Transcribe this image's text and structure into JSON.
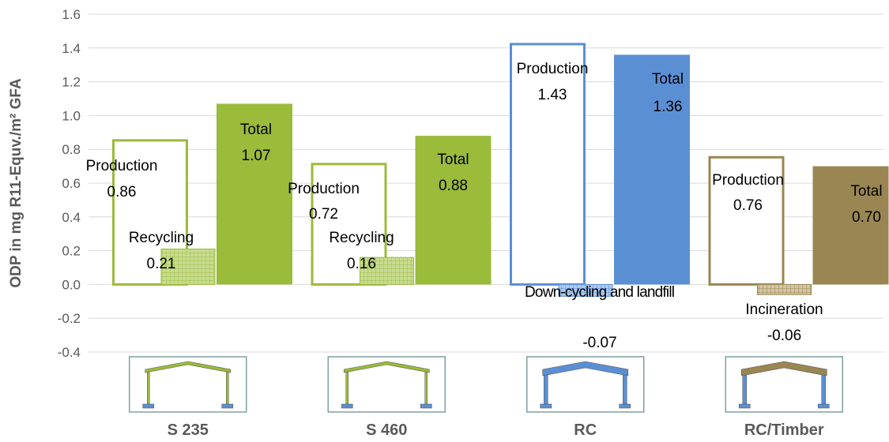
{
  "chart_data": {
    "type": "bar",
    "title": "",
    "xlabel": "",
    "ylabel": "ODP in mg R11-Equv./m² GFA",
    "ylim": [
      -0.4,
      1.6
    ],
    "ytick_step": 0.2,
    "grid": true,
    "legend": "none",
    "categories": [
      {
        "name": "S 235",
        "structure_color": "#9BBB3B",
        "roof_color": "#9BBB3B",
        "bars": [
          {
            "label": "Production",
            "value": 0.86,
            "value_text": "0.86",
            "style": "outline",
            "color": "#9BBB3B"
          },
          {
            "label": "Recycling",
            "value": 0.21,
            "value_text": "0.21",
            "style": "hatched",
            "color": "#9BBB3B"
          },
          {
            "label": "Total",
            "value": 1.07,
            "value_text": "1.07",
            "style": "solid",
            "color": "#9BBB3B"
          }
        ]
      },
      {
        "name": "S 460",
        "structure_color": "#9BBB3B",
        "roof_color": "#9BBB3B",
        "bars": [
          {
            "label": "Production",
            "value": 0.72,
            "value_text": "0.72",
            "style": "outline",
            "color": "#9BBB3B"
          },
          {
            "label": "Recycling",
            "value": 0.16,
            "value_text": "0.16",
            "style": "hatched",
            "color": "#9BBB3B"
          },
          {
            "label": "Total",
            "value": 0.88,
            "value_text": "0.88",
            "style": "solid",
            "color": "#9BBB3B"
          }
        ]
      },
      {
        "name": "RC",
        "structure_color": "#5B8FD4",
        "roof_color": "#5B8FD4",
        "bars": [
          {
            "label": "Production",
            "value": 1.43,
            "value_text": "1.43",
            "style": "outline",
            "color": "#5B8FD4"
          },
          {
            "label": "Down-cycling and landfill",
            "value": -0.07,
            "value_text": "-0.07",
            "style": "hatched",
            "color": "#5B8FD4"
          },
          {
            "label": "Total",
            "value": 1.36,
            "value_text": "1.36",
            "style": "solid",
            "color": "#5B8FD4"
          }
        ]
      },
      {
        "name": "RC/Timber",
        "structure_color": "#5B8FD4",
        "roof_color": "#9A8653",
        "bars": [
          {
            "label": "Production",
            "value": 0.76,
            "value_text": "0.76",
            "style": "outline",
            "color": "#9A8653"
          },
          {
            "label": "Incineration",
            "value": -0.06,
            "value_text": "-0.06",
            "style": "hatched",
            "color": "#9A8653"
          },
          {
            "label": "Total",
            "value": 0.7,
            "value_text": "0.70",
            "style": "solid",
            "color": "#9A8653"
          }
        ]
      }
    ]
  }
}
